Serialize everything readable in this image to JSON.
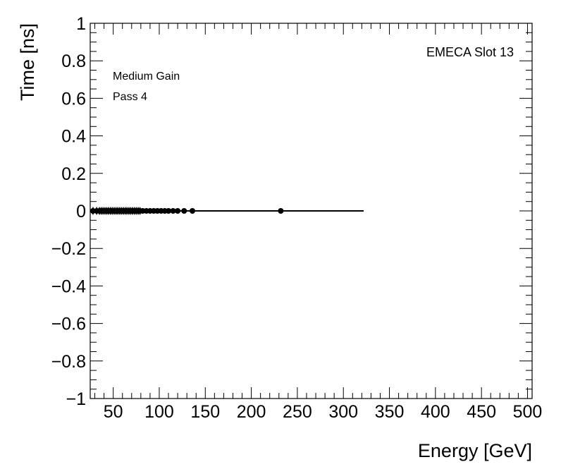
{
  "chart_data": {
    "type": "scatter",
    "xlabel": "Energy [GeV]",
    "ylabel": "Time [ns]",
    "xlim": [
      25,
      505
    ],
    "ylim": [
      -1,
      1
    ],
    "x_ticks": [
      50,
      100,
      150,
      200,
      250,
      300,
      350,
      400,
      450,
      500
    ],
    "y_ticks": [
      -1,
      -0.8,
      -0.6,
      -0.4,
      -0.2,
      0,
      0.2,
      0.4,
      0.6,
      0.8,
      1
    ],
    "x_tick_labels": [
      "50",
      "100",
      "150",
      "200",
      "250",
      "300",
      "350",
      "400",
      "450",
      "500"
    ],
    "y_tick_labels": [
      "−1",
      "−0.8",
      "−0.6",
      "−0.4",
      "−0.2",
      "0",
      "0.2",
      "0.4",
      "0.6",
      "0.8",
      "1"
    ],
    "grid": false,
    "fit_line": {
      "x": [
        30,
        322
      ],
      "y": [
        0,
        0
      ]
    },
    "points": {
      "x": [
        28,
        32,
        35,
        37,
        39,
        41,
        43,
        45,
        47,
        49,
        51,
        53,
        55,
        57,
        59,
        61,
        63,
        65,
        67,
        69,
        71,
        73,
        75,
        77,
        79,
        82,
        86,
        90,
        94,
        98,
        102,
        106,
        110,
        115,
        120,
        127,
        136,
        232
      ],
      "y": [
        0,
        0,
        0,
        0,
        0,
        0,
        0,
        0,
        0,
        0,
        0,
        0,
        0,
        0,
        0,
        0,
        0,
        0,
        0,
        0,
        0,
        0,
        0,
        0,
        0,
        0,
        0,
        0,
        0,
        0,
        0,
        0,
        0,
        0,
        0,
        0,
        0,
        0
      ],
      "yerr": [
        0.02,
        0.02,
        0.02,
        0.02,
        0.02,
        0.02,
        0.02,
        0.02,
        0.02,
        0.02,
        0.02,
        0.02,
        0.02,
        0.02,
        0.02,
        0.02,
        0.02,
        0.02,
        0.02,
        0.02,
        0.02,
        0.02,
        0.02,
        0.02,
        0.02,
        0.01,
        0.01,
        0.01,
        0.01,
        0.01,
        0.01,
        0.01,
        0.01,
        0.01,
        0.01,
        0.01,
        0.01,
        0.005
      ]
    },
    "annotations": {
      "medium_gain": "Medium Gain",
      "pass": "Pass 4",
      "slot": "EMECA Slot 13"
    }
  }
}
